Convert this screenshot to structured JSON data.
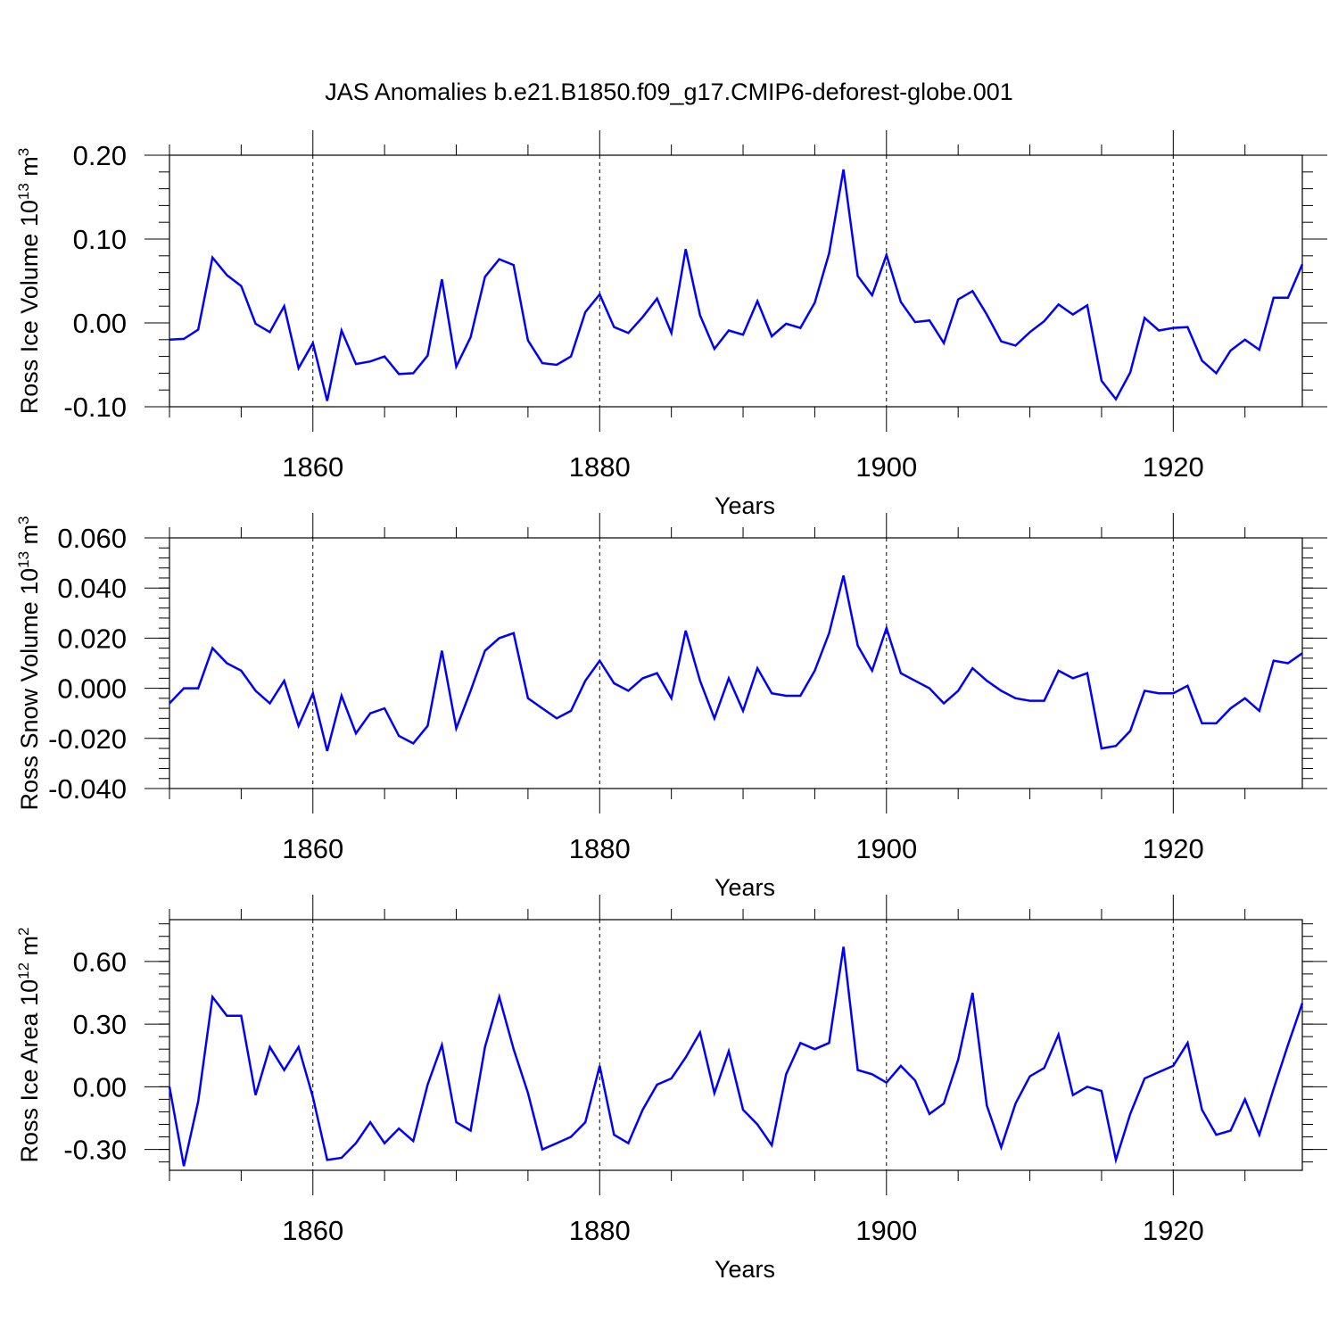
{
  "title": "JAS Anomalies b.e21.B1850.f09_g17.CMIP6-deforest-globe.001",
  "colors": {
    "series": "#0000ff",
    "axes": "#000000",
    "grid": "#000000"
  },
  "chart_data": [
    {
      "type": "line",
      "xlabel": "Years",
      "ylabel": {
        "text": "Ross Ice Volume 10",
        "exp": "13",
        "unit": " m",
        "unit_exp": "3"
      },
      "xlim": [
        1850,
        1929
      ],
      "ylim": [
        -0.1,
        0.2
      ],
      "yticks": [
        -0.1,
        0.0,
        0.1,
        0.2
      ],
      "ytick_labels": [
        "-0.10",
        "0.00",
        "0.10",
        "0.20"
      ],
      "xticks": [
        1860,
        1880,
        1900,
        1920
      ],
      "xtick_labels": [
        "1860",
        "1880",
        "1900",
        "1920"
      ],
      "grid": "vertical dashed at major x ticks",
      "series": [
        {
          "x": [
            1850,
            1851,
            1852,
            1853,
            1854,
            1855,
            1856,
            1857,
            1858,
            1859,
            1860,
            1861,
            1862,
            1863,
            1864,
            1865,
            1866,
            1867,
            1868,
            1869,
            1870,
            1871,
            1872,
            1873,
            1874,
            1875,
            1876,
            1877,
            1878,
            1879,
            1880,
            1881,
            1882,
            1883,
            1884,
            1885,
            1886,
            1887,
            1888,
            1889,
            1890,
            1891,
            1892,
            1893,
            1894,
            1895,
            1896,
            1897,
            1898,
            1899,
            1900,
            1901,
            1902,
            1903,
            1904,
            1905,
            1906,
            1907,
            1908,
            1909,
            1910,
            1911,
            1912,
            1913,
            1914,
            1915,
            1916,
            1917,
            1918,
            1919,
            1920,
            1921,
            1922,
            1923,
            1924,
            1925,
            1926,
            1927,
            1928,
            1929
          ],
          "y": [
            -0.02,
            -0.019,
            -0.008,
            0.078,
            0.057,
            0.044,
            -0.001,
            -0.011,
            0.02,
            -0.054,
            -0.024,
            -0.093,
            -0.009,
            -0.049,
            -0.046,
            -0.04,
            -0.061,
            -0.06,
            -0.039,
            0.052,
            -0.052,
            -0.017,
            0.055,
            0.076,
            0.069,
            -0.021,
            -0.048,
            -0.05,
            -0.04,
            0.013,
            0.034,
            -0.005,
            -0.012,
            0.007,
            0.029,
            -0.012,
            0.088,
            0.009,
            -0.031,
            -0.009,
            -0.014,
            0.026,
            -0.016,
            -0.001,
            -0.006,
            0.024,
            0.083,
            0.183,
            0.056,
            0.033,
            0.081,
            0.025,
            0.001,
            0.003,
            -0.024,
            0.028,
            0.038,
            0.01,
            -0.022,
            -0.027,
            -0.011,
            0.002,
            0.022,
            0.01,
            0.021,
            -0.069,
            -0.091,
            -0.059,
            0.006,
            -0.009,
            -0.006,
            -0.005,
            -0.045,
            -0.06,
            -0.033,
            -0.02,
            -0.032,
            0.03,
            0.03,
            0.07
          ]
        }
      ]
    },
    {
      "type": "line",
      "xlabel": "Years",
      "ylabel": {
        "text": "Ross Snow Volume 10",
        "exp": "13",
        "unit": " m",
        "unit_exp": "3"
      },
      "xlim": [
        1850,
        1929
      ],
      "ylim": [
        -0.04,
        0.06
      ],
      "yticks": [
        -0.04,
        -0.02,
        0.0,
        0.02,
        0.04,
        0.06
      ],
      "ytick_labels": [
        "-0.040",
        "-0.020",
        "0.000",
        "0.020",
        "0.040",
        "0.060"
      ],
      "xticks": [
        1860,
        1880,
        1900,
        1920
      ],
      "xtick_labels": [
        "1860",
        "1880",
        "1900",
        "1920"
      ],
      "grid": "vertical dashed at major x ticks",
      "series": [
        {
          "x": [
            1850,
            1851,
            1852,
            1853,
            1854,
            1855,
            1856,
            1857,
            1858,
            1859,
            1860,
            1861,
            1862,
            1863,
            1864,
            1865,
            1866,
            1867,
            1868,
            1869,
            1870,
            1871,
            1872,
            1873,
            1874,
            1875,
            1876,
            1877,
            1878,
            1879,
            1880,
            1881,
            1882,
            1883,
            1884,
            1885,
            1886,
            1887,
            1888,
            1889,
            1890,
            1891,
            1892,
            1893,
            1894,
            1895,
            1896,
            1897,
            1898,
            1899,
            1900,
            1901,
            1902,
            1903,
            1904,
            1905,
            1906,
            1907,
            1908,
            1909,
            1910,
            1911,
            1912,
            1913,
            1914,
            1915,
            1916,
            1917,
            1918,
            1919,
            1920,
            1921,
            1922,
            1923,
            1924,
            1925,
            1926,
            1927,
            1928,
            1929
          ],
          "y": [
            -0.006,
            0.0,
            0.0,
            0.016,
            0.01,
            0.007,
            -0.001,
            -0.006,
            0.003,
            -0.015,
            -0.002,
            -0.025,
            -0.003,
            -0.018,
            -0.01,
            -0.008,
            -0.019,
            -0.022,
            -0.015,
            0.015,
            -0.016,
            -0.001,
            0.015,
            0.02,
            0.022,
            -0.004,
            -0.008,
            -0.012,
            -0.009,
            0.003,
            0.011,
            0.002,
            -0.001,
            0.004,
            0.006,
            -0.004,
            0.023,
            0.003,
            -0.012,
            0.004,
            -0.009,
            0.008,
            -0.002,
            -0.003,
            -0.003,
            0.007,
            0.022,
            0.045,
            0.017,
            0.007,
            0.024,
            0.006,
            0.003,
            0.0,
            -0.006,
            -0.001,
            0.008,
            0.003,
            -0.001,
            -0.004,
            -0.005,
            -0.005,
            0.007,
            0.004,
            0.006,
            -0.024,
            -0.023,
            -0.017,
            -0.001,
            -0.002,
            -0.002,
            0.001,
            -0.014,
            -0.014,
            -0.008,
            -0.004,
            -0.009,
            0.011,
            0.01,
            0.014
          ]
        }
      ]
    },
    {
      "type": "line",
      "xlabel": "Years",
      "ylabel": {
        "text": "Ross Ice Area 10",
        "exp": "12",
        "unit": " m",
        "unit_exp": "2"
      },
      "xlim": [
        1850,
        1929
      ],
      "ylim": [
        -0.4,
        0.8
      ],
      "yticks": [
        -0.3,
        0.0,
        0.3,
        0.6
      ],
      "ytick_labels": [
        "-0.30",
        "0.00",
        "0.30",
        "0.60"
      ],
      "xticks": [
        1860,
        1880,
        1900,
        1920
      ],
      "xtick_labels": [
        "1860",
        "1880",
        "1900",
        "1920"
      ],
      "grid": "vertical dashed at major x ticks",
      "series": [
        {
          "x": [
            1850,
            1851,
            1852,
            1853,
            1854,
            1855,
            1856,
            1857,
            1858,
            1859,
            1860,
            1861,
            1862,
            1863,
            1864,
            1865,
            1866,
            1867,
            1868,
            1869,
            1870,
            1871,
            1872,
            1873,
            1874,
            1875,
            1876,
            1877,
            1878,
            1879,
            1880,
            1881,
            1882,
            1883,
            1884,
            1885,
            1886,
            1887,
            1888,
            1889,
            1890,
            1891,
            1892,
            1893,
            1894,
            1895,
            1896,
            1897,
            1898,
            1899,
            1900,
            1901,
            1902,
            1903,
            1904,
            1905,
            1906,
            1907,
            1908,
            1909,
            1910,
            1911,
            1912,
            1913,
            1914,
            1915,
            1916,
            1917,
            1918,
            1919,
            1920,
            1921,
            1922,
            1923,
            1924,
            1925,
            1926,
            1927,
            1928,
            1929
          ],
          "y": [
            0.0,
            -0.38,
            -0.07,
            0.43,
            0.34,
            0.34,
            -0.04,
            0.19,
            0.08,
            0.19,
            -0.05,
            -0.35,
            -0.34,
            -0.27,
            -0.17,
            -0.27,
            -0.2,
            -0.26,
            0.01,
            0.2,
            -0.17,
            -0.21,
            0.19,
            0.43,
            0.18,
            -0.03,
            -0.3,
            -0.27,
            -0.24,
            -0.17,
            0.1,
            -0.23,
            -0.27,
            -0.11,
            0.01,
            0.04,
            0.14,
            0.26,
            -0.03,
            0.17,
            -0.11,
            -0.18,
            -0.28,
            0.06,
            0.21,
            0.18,
            0.21,
            0.67,
            0.08,
            0.06,
            0.02,
            0.1,
            0.03,
            -0.13,
            -0.08,
            0.13,
            0.45,
            -0.09,
            -0.29,
            -0.08,
            0.05,
            0.09,
            0.25,
            -0.04,
            0.0,
            -0.02,
            -0.35,
            -0.13,
            0.04,
            0.07,
            0.1,
            0.21,
            -0.11,
            -0.23,
            -0.21,
            -0.06,
            -0.23,
            -0.01,
            0.2,
            0.4
          ]
        }
      ]
    }
  ]
}
